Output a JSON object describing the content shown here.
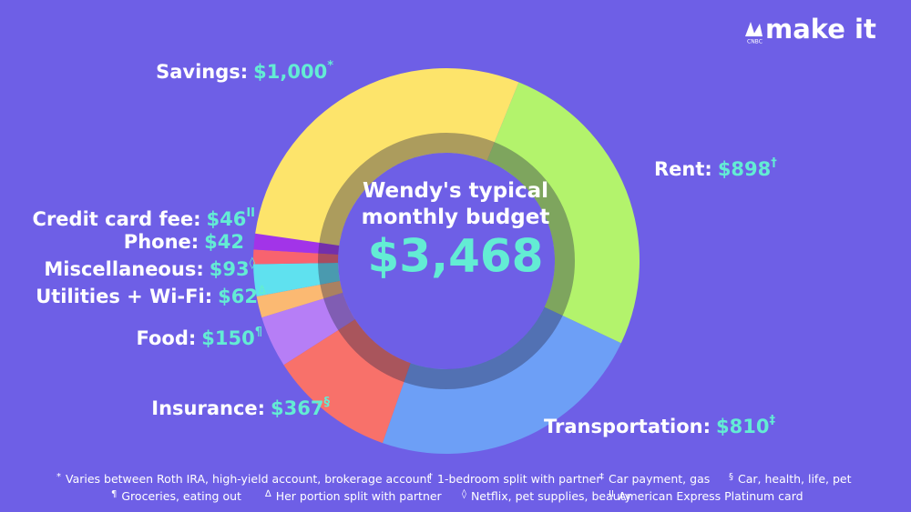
{
  "chart_data": {
    "type": "donut",
    "title": "Wendy's typical monthly budget",
    "total": {
      "value": 3468,
      "label": "$3,468"
    },
    "categories": [
      "Rent:",
      "Transportation:",
      "Insurance:",
      "Food:",
      "Utilities + Wi-Fi:",
      "Miscellaneous:",
      "Phone:",
      "Credit card fee:",
      "Savings:"
    ],
    "values": [
      898,
      810,
      367,
      150,
      62,
      93,
      42,
      46,
      1000
    ],
    "value_labels": [
      "$898",
      "$810",
      "$367",
      "$150",
      "$62",
      "$93",
      "$42",
      "$46",
      "$1,000"
    ],
    "notes": [
      "†",
      "‡",
      "§",
      "¶",
      "∆",
      "◊",
      "",
      "II",
      "*"
    ],
    "colors": [
      "#b3f36c",
      "#6d9ff6",
      "#f8716a",
      "#b67ef6",
      "#fbb972",
      "#5fe1ef",
      "#f8636f",
      "#a234e8",
      "#fde46b"
    ],
    "footnotes": [
      {
        "symbol": "*",
        "text": "Varies between Roth IRA, high-yield account, brokerage account"
      },
      {
        "symbol": "†",
        "text": "1-bedroom split with partner"
      },
      {
        "symbol": "‡",
        "text": "Car payment, gas"
      },
      {
        "symbol": "§",
        "text": "Car, health, life, pet"
      },
      {
        "symbol": "¶",
        "text": "Groceries, eating out"
      },
      {
        "symbol": "∆",
        "text": "Her portion split with partner"
      },
      {
        "symbol": "◊",
        "text": "Netflix, pet supplies, beauty"
      },
      {
        "symbol": "II",
        "text": "American Express Platinum card"
      }
    ],
    "brand": "make it",
    "brand_small": "CNBC"
  }
}
